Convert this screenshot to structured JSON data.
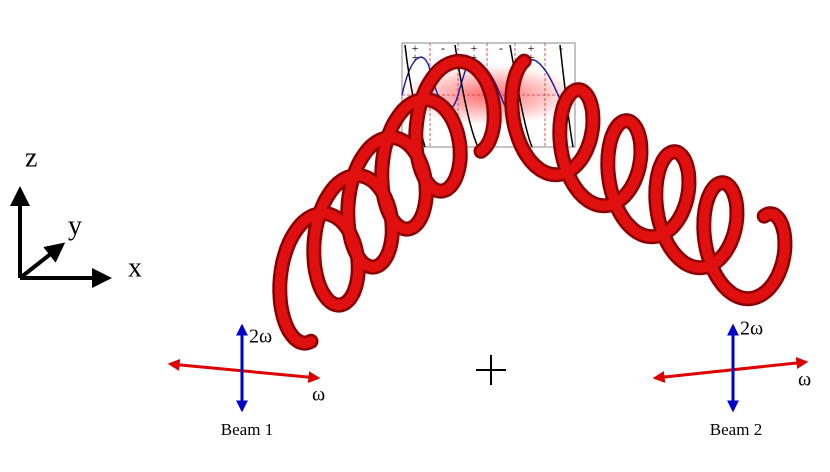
{
  "axes_gizmo": {
    "z": "z",
    "y": "y",
    "x": "x"
  },
  "beam_1": {
    "vertical": "2ω",
    "horizontal": "ω",
    "label": "Beam 1"
  },
  "beam_2": {
    "vertical": "2ω",
    "horizontal": "ω",
    "label": "Beam 2"
  },
  "inset": {
    "top_labels": [
      "+",
      "-",
      "+",
      "-",
      "+",
      "-"
    ],
    "second_labels": [
      "+",
      "+",
      "+"
    ]
  }
}
